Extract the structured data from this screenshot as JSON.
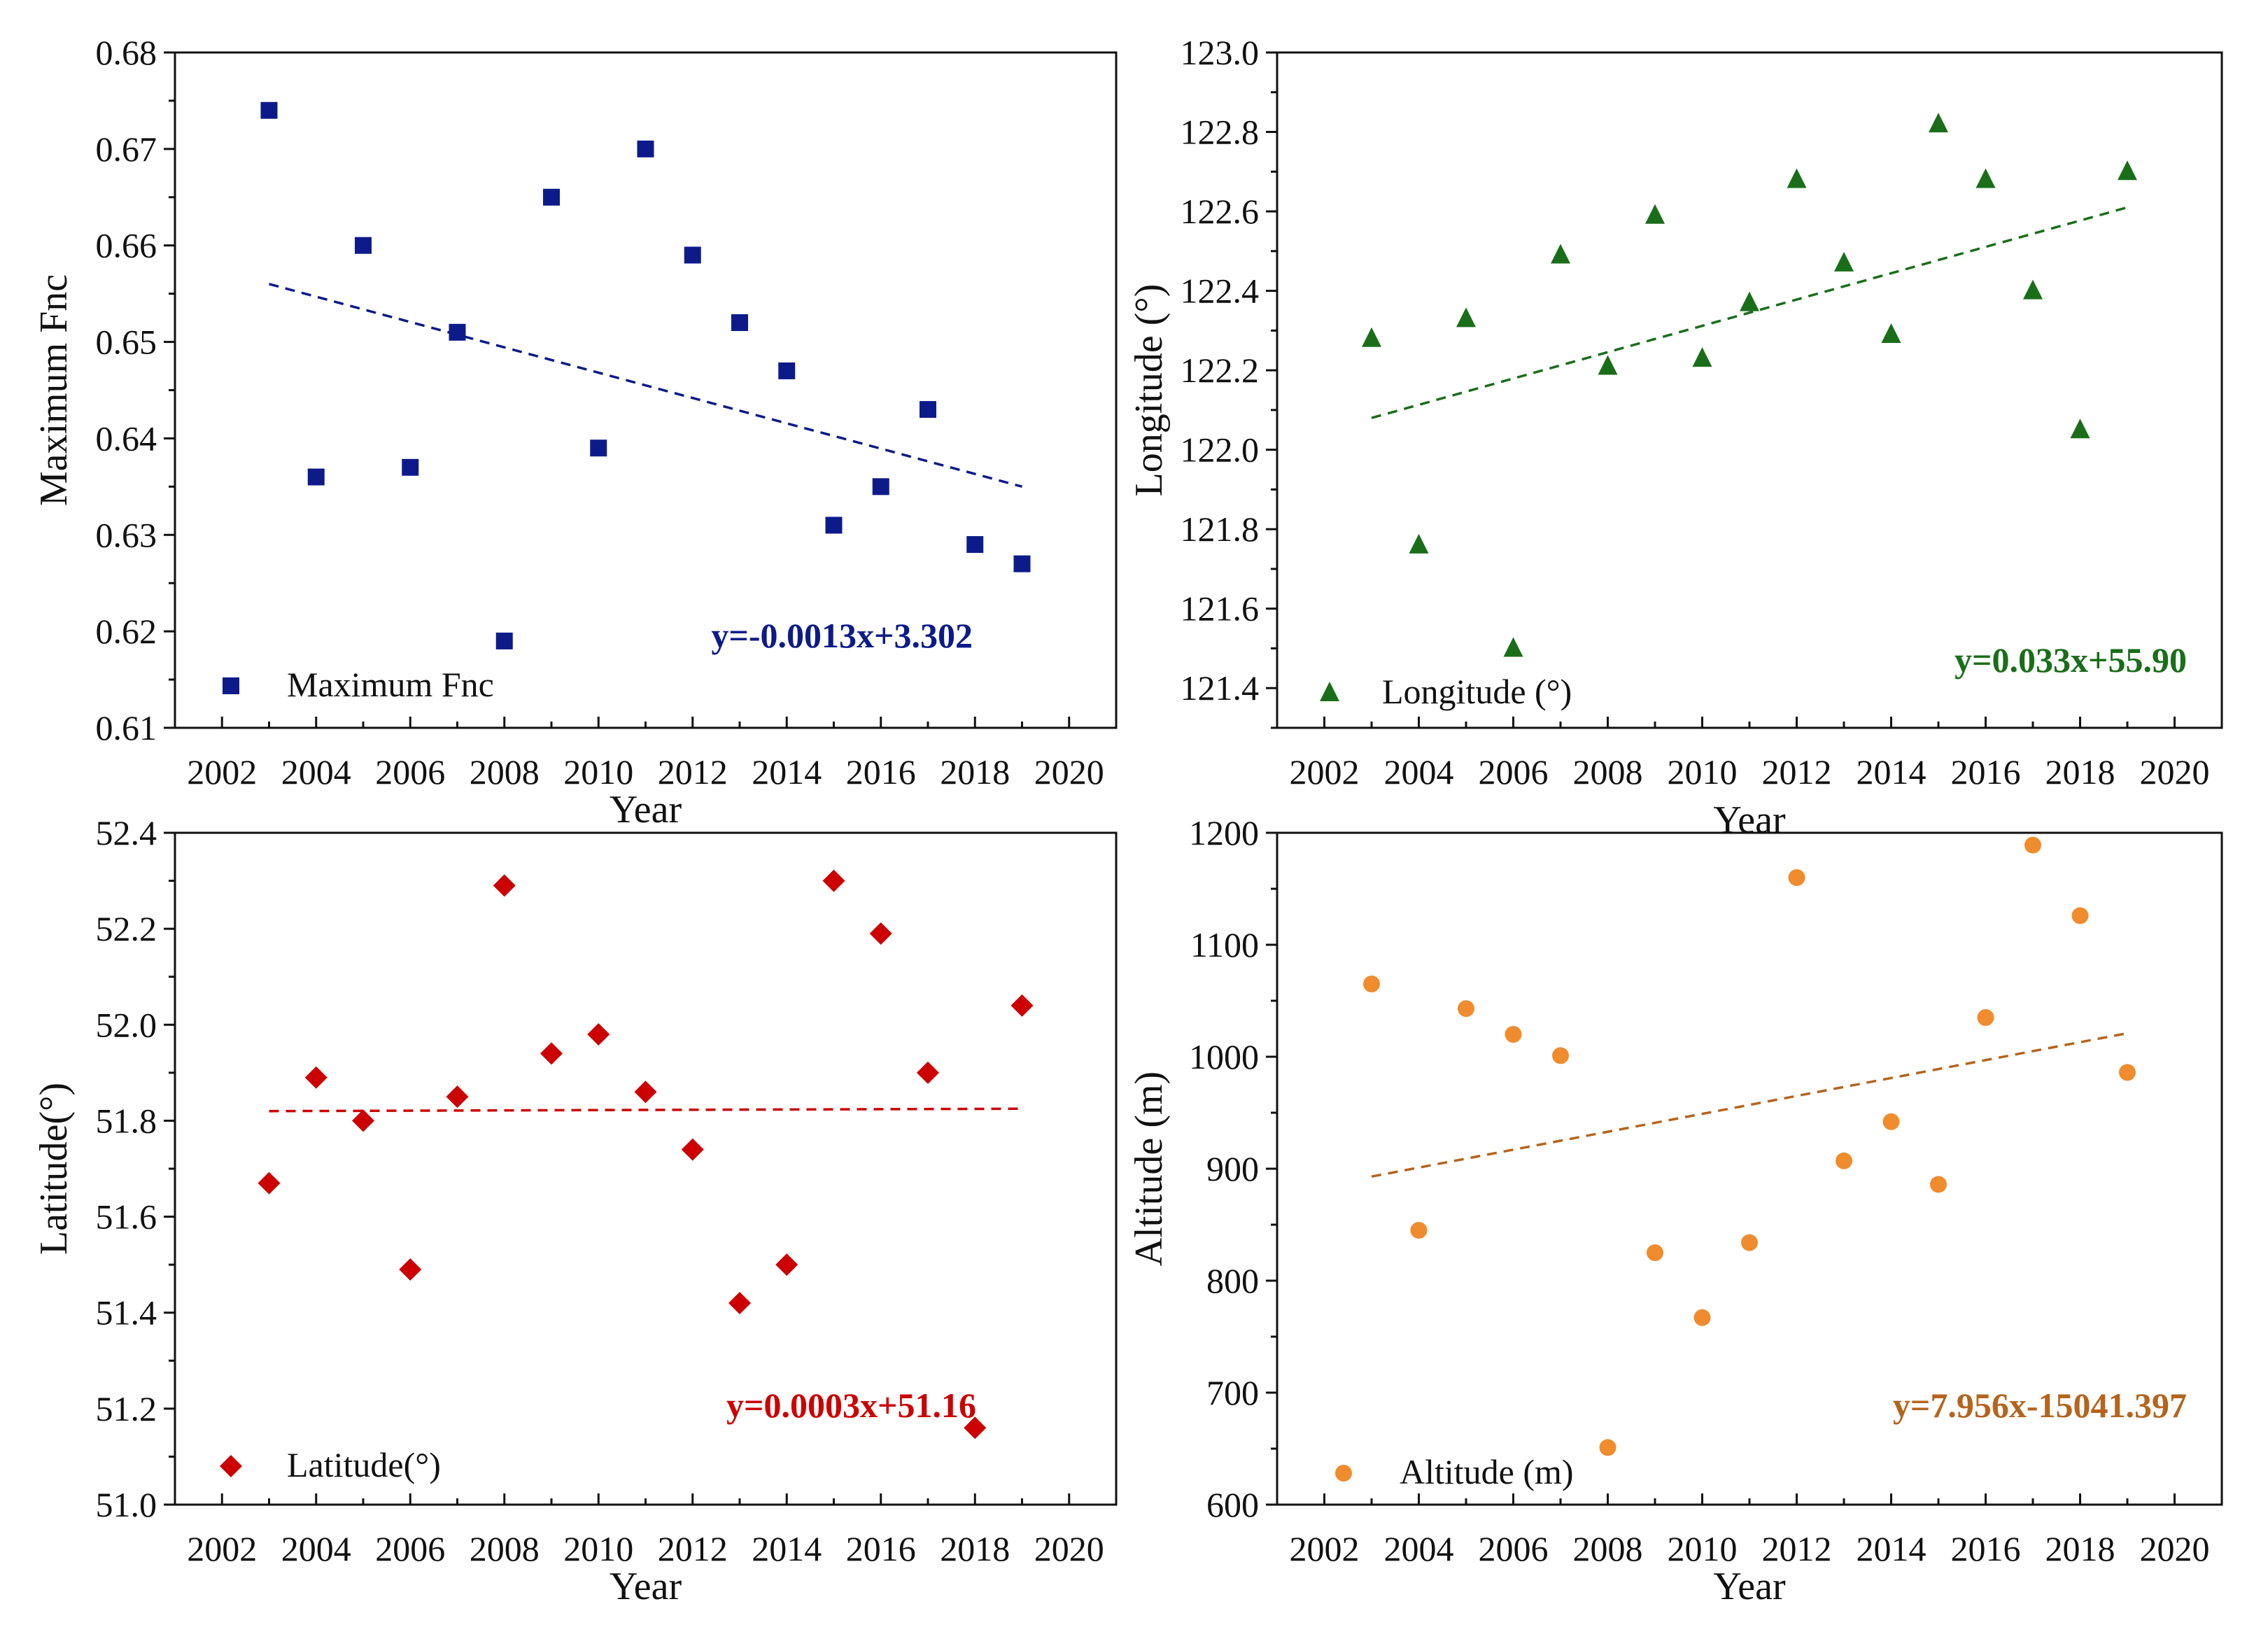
{
  "chart_data": [
    {
      "id": "fnc",
      "type": "scatter",
      "xlabel": "Year",
      "ylabel": "Maximum Fnc",
      "xlim": [
        2001,
        2021
      ],
      "ylim": [
        0.61,
        0.68
      ],
      "xticks": [
        2002,
        2004,
        2006,
        2008,
        2010,
        2012,
        2014,
        2016,
        2018,
        2020
      ],
      "yticks": [
        0.61,
        0.62,
        0.63,
        0.64,
        0.65,
        0.66,
        0.67,
        0.68
      ],
      "ytick_labels": [
        "0.61",
        "0.62",
        "0.63",
        "0.64",
        "0.65",
        "0.66",
        "0.67",
        "0.68"
      ],
      "grid": false,
      "marker": "square",
      "color": "#0d1b8a",
      "legend": {
        "label": "Maximum Fnc",
        "position": "bottom-left"
      },
      "equation": "y=-0.0013x+3.302",
      "x": [
        2003,
        2004,
        2005,
        2006,
        2007,
        2008,
        2009,
        2010,
        2011,
        2012,
        2013,
        2014,
        2015,
        2016,
        2017,
        2018,
        2019
      ],
      "y": [
        0.674,
        0.636,
        0.66,
        0.637,
        0.651,
        0.619,
        0.665,
        0.639,
        0.67,
        0.659,
        0.652,
        0.647,
        0.631,
        0.635,
        0.643,
        0.629,
        0.627
      ],
      "trend": {
        "x": [
          2003,
          2019
        ],
        "y": [
          0.656,
          0.635
        ]
      }
    },
    {
      "id": "longitude",
      "type": "scatter",
      "xlabel": "Year",
      "ylabel": "Longitude (°)",
      "xlim": [
        2001,
        2021
      ],
      "ylim": [
        121.3,
        123.0
      ],
      "xticks": [
        2002,
        2004,
        2006,
        2008,
        2010,
        2012,
        2014,
        2016,
        2018,
        2020
      ],
      "yticks": [
        121.4,
        121.6,
        121.8,
        122.0,
        122.2,
        122.4,
        122.6,
        122.8,
        123.0
      ],
      "ytick_labels": [
        "121.4",
        "121.6",
        "121.8",
        "122.0",
        "122.2",
        "122.4",
        "122.6",
        "122.8",
        "123.0"
      ],
      "grid": false,
      "marker": "triangle",
      "color": "#1a6e1a",
      "legend": {
        "label": "Longitude (°)",
        "position": "bottom-left"
      },
      "equation": "y=0.033x+55.90",
      "x": [
        2003,
        2004,
        2005,
        2006,
        2007,
        2008,
        2009,
        2010,
        2011,
        2012,
        2013,
        2014,
        2015,
        2016,
        2017,
        2018,
        2019
      ],
      "y": [
        122.28,
        121.76,
        122.33,
        121.5,
        122.49,
        122.21,
        122.59,
        122.23,
        122.37,
        122.68,
        122.47,
        122.29,
        122.82,
        122.68,
        122.4,
        122.05,
        122.7
      ],
      "trend": {
        "x": [
          2003,
          2019
        ],
        "y": [
          122.08,
          122.61
        ]
      }
    },
    {
      "id": "latitude",
      "type": "scatter",
      "xlabel": "Year",
      "ylabel": "Latitude(°)",
      "xlim": [
        2001,
        2021
      ],
      "ylim": [
        51.0,
        52.4
      ],
      "xticks": [
        2002,
        2004,
        2006,
        2008,
        2010,
        2012,
        2014,
        2016,
        2018,
        2020
      ],
      "yticks": [
        51.0,
        51.2,
        51.4,
        51.6,
        51.8,
        52.0,
        52.2,
        52.4
      ],
      "ytick_labels": [
        "51.0",
        "51.2",
        "51.4",
        "51.6",
        "51.8",
        "52.0",
        "52.2",
        "52.4"
      ],
      "grid": false,
      "marker": "diamond",
      "color": "#cc0000",
      "legend": {
        "label": "Latitude(°)",
        "position": "bottom-left"
      },
      "equation": "y=0.0003x+51.16",
      "x": [
        2003,
        2004,
        2005,
        2006,
        2007,
        2008,
        2009,
        2010,
        2011,
        2012,
        2013,
        2014,
        2015,
        2016,
        2017,
        2018,
        2019
      ],
      "y": [
        51.67,
        51.89,
        51.8,
        51.49,
        51.85,
        52.29,
        51.94,
        51.98,
        51.86,
        51.74,
        51.42,
        51.5,
        52.3,
        52.19,
        51.9,
        51.16,
        52.04
      ],
      "trend": {
        "x": [
          2003,
          2019
        ],
        "y": [
          51.82,
          51.825
        ]
      }
    },
    {
      "id": "altitude",
      "type": "scatter",
      "xlabel": "Year",
      "ylabel": "Altitude (m)",
      "xlim": [
        2001,
        2021
      ],
      "ylim": [
        600,
        1200
      ],
      "xticks": [
        2002,
        2004,
        2006,
        2008,
        2010,
        2012,
        2014,
        2016,
        2018,
        2020
      ],
      "yticks": [
        600,
        700,
        800,
        900,
        1000,
        1100,
        1200
      ],
      "ytick_labels": [
        "600",
        "700",
        "800",
        "900",
        "1000",
        "1100",
        "1200"
      ],
      "grid": false,
      "marker": "circle",
      "color": "#f08c2e",
      "trend_color": "#b5641e",
      "legend": {
        "label": "Altitude (m)",
        "position": "bottom-left"
      },
      "equation": "y=7.956x-15041.397",
      "x": [
        2003,
        2004,
        2005,
        2006,
        2007,
        2008,
        2009,
        2010,
        2011,
        2012,
        2013,
        2014,
        2015,
        2016,
        2017,
        2018,
        2019
      ],
      "y": [
        1065,
        845,
        1043,
        1020,
        1001,
        651,
        825,
        767,
        834,
        1160,
        907,
        942,
        886,
        1035,
        1189,
        1126,
        986
      ],
      "trend": {
        "x": [
          2003,
          2019
        ],
        "y": [
          893,
          1021
        ]
      }
    }
  ]
}
